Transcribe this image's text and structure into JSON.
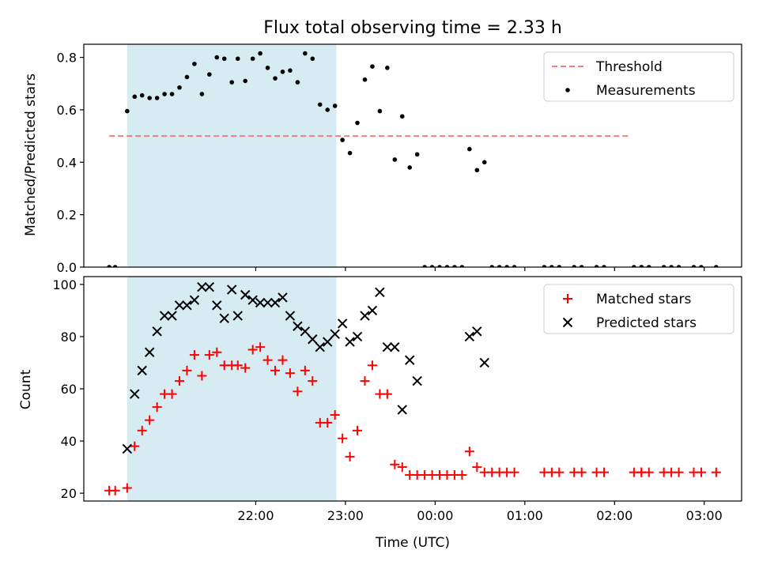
{
  "chart_data": [
    {
      "type": "scatter",
      "title": "Flux total observing time = 2.33 h",
      "ylabel": "Matched/Predicted stars",
      "xlabel": "",
      "x_unit": "minutes since 21:00 UTC",
      "xlim": [
        -55,
        385
      ],
      "ylim": [
        0,
        0.85
      ],
      "yticks": [
        0.0,
        0.2,
        0.4,
        0.6,
        0.8
      ],
      "ytick_labels": [
        "0.0",
        "0.2",
        "0.4",
        "0.6",
        "0.8"
      ],
      "shaded_span": {
        "start": -26,
        "end": 114,
        "color": "#add8e6"
      },
      "legend": {
        "location": "upper right",
        "entries": [
          "Threshold",
          "Measurements"
        ]
      },
      "series": [
        {
          "name": "Threshold",
          "kind": "dashed-line",
          "color": "#f08080",
          "x": [
            -38,
            310
          ],
          "y": [
            0.5,
            0.5
          ]
        },
        {
          "name": "Measurements",
          "kind": "dot",
          "color": "#000000",
          "x": [
            -38,
            -34,
            -26,
            -21,
            -16,
            -11,
            -6,
            -1,
            4,
            9,
            14,
            19,
            24,
            29,
            34,
            39,
            44,
            48,
            53,
            58,
            63,
            68,
            73,
            78,
            83,
            88,
            93,
            98,
            103,
            108,
            113,
            118,
            123,
            128,
            133,
            138,
            143,
            148,
            153,
            158,
            163,
            168,
            173,
            178,
            183,
            188,
            193,
            198,
            203,
            208,
            213,
            218,
            223,
            228,
            233,
            253,
            258,
            263,
            273,
            278,
            288,
            293,
            313,
            318,
            318,
            323,
            333,
            338,
            343,
            353,
            358,
            368
          ],
          "y": [
            0,
            0,
            0.595,
            0.65,
            0.655,
            0.645,
            0.645,
            0.66,
            0.66,
            0.685,
            0.725,
            0.775,
            0.66,
            0.735,
            0.8,
            0.795,
            0.705,
            0.795,
            0.71,
            0.795,
            0.815,
            0.76,
            0.72,
            0.745,
            0.75,
            0.705,
            0.815,
            0.795,
            0.62,
            0.6,
            0.615,
            0.485,
            0.435,
            0.55,
            0.715,
            0.765,
            0.595,
            0.76,
            0.41,
            0.575,
            0.38,
            0.43,
            0,
            0,
            0,
            0,
            0,
            0,
            0.45,
            0.37,
            0.4,
            0,
            0,
            0,
            0,
            0,
            0,
            0,
            0,
            0,
            0,
            0,
            0,
            0,
            0,
            0,
            0,
            0,
            0,
            0,
            0,
            0
          ]
        }
      ]
    },
    {
      "type": "scatter",
      "title": "",
      "ylabel": "Count",
      "xlabel": "Time (UTC)",
      "x_unit": "minutes since 21:00 UTC",
      "xlim": [
        -55,
        385
      ],
      "ylim": [
        17,
        103
      ],
      "yticks": [
        20,
        40,
        60,
        80,
        100
      ],
      "ytick_labels": [
        "20",
        "40",
        "60",
        "80",
        "100"
      ],
      "xticks": [
        60,
        120,
        180,
        240,
        300,
        360
      ],
      "xtick_labels": [
        "22:00",
        "23:00",
        "00:00",
        "01:00",
        "02:00",
        "03:00"
      ],
      "shaded_span": {
        "start": -26,
        "end": 114,
        "color": "#add8e6"
      },
      "legend": {
        "location": "upper right",
        "entries": [
          "Matched stars",
          "Predicted stars"
        ]
      },
      "series": [
        {
          "name": "Matched stars",
          "kind": "plus",
          "color": "#ff0000",
          "x": [
            -38,
            -34,
            -26,
            -21,
            -16,
            -11,
            -6,
            -1,
            4,
            9,
            14,
            19,
            24,
            29,
            34,
            39,
            44,
            48,
            53,
            58,
            63,
            68,
            73,
            78,
            83,
            88,
            93,
            98,
            103,
            108,
            113,
            118,
            123,
            128,
            133,
            138,
            143,
            148,
            153,
            158,
            163,
            168,
            173,
            178,
            183,
            188,
            193,
            198,
            203,
            208,
            213,
            218,
            223,
            228,
            233,
            253,
            258,
            263,
            273,
            278,
            288,
            293,
            313,
            318,
            318,
            323,
            333,
            338,
            343,
            353,
            358,
            368
          ],
          "y": [
            21,
            21,
            22,
            38,
            44,
            48,
            53,
            58,
            58,
            63,
            67,
            73,
            65,
            73,
            74,
            69,
            69,
            69,
            68,
            75,
            76,
            71,
            67,
            71,
            66,
            59,
            67,
            63,
            47,
            47,
            50,
            41,
            34,
            44,
            63,
            69,
            58,
            58,
            31,
            30,
            27,
            27,
            27,
            27,
            27,
            27,
            27,
            27,
            36,
            30,
            28,
            28,
            28,
            28,
            28,
            28,
            28,
            28,
            28,
            28,
            28,
            28,
            28,
            28,
            28,
            28,
            28,
            28,
            28,
            28,
            28,
            28
          ]
        },
        {
          "name": "Predicted stars",
          "kind": "x",
          "color": "#000000",
          "x": [
            -26,
            -21,
            -16,
            -11,
            -6,
            -1,
            4,
            9,
            14,
            19,
            24,
            29,
            34,
            39,
            44,
            48,
            53,
            58,
            63,
            68,
            73,
            78,
            83,
            88,
            93,
            98,
            103,
            108,
            113,
            118,
            123,
            128,
            133,
            138,
            143,
            148,
            153,
            158,
            163,
            168,
            203,
            208,
            213
          ],
          "y": [
            37,
            58,
            67,
            74,
            82,
            88,
            88,
            92,
            92,
            94,
            99,
            99,
            92,
            87,
            98,
            88,
            96,
            94,
            93,
            93,
            93,
            95,
            88,
            84,
            82,
            79,
            76,
            78,
            81,
            85,
            78,
            80,
            88,
            90,
            97,
            76,
            76,
            52,
            71,
            63,
            80,
            82,
            70
          ]
        }
      ]
    }
  ]
}
